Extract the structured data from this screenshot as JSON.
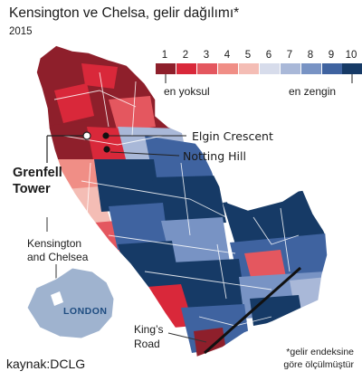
{
  "title": "Kensington ve Chelsa, gelir dağılımı*",
  "year": "2015",
  "legend": {
    "items": [
      {
        "label": "1",
        "color": "#8e1f2b"
      },
      {
        "label": "2",
        "color": "#d9283a"
      },
      {
        "label": "3",
        "color": "#e4575f"
      },
      {
        "label": "4",
        "color": "#f08e86"
      },
      {
        "label": "5",
        "color": "#f4bdb5"
      },
      {
        "label": "6",
        "color": "#d7dceb"
      },
      {
        "label": "7",
        "color": "#a9b8d8"
      },
      {
        "label": "8",
        "color": "#7893c4"
      },
      {
        "label": "9",
        "color": "#3f63a0"
      },
      {
        "label": "10",
        "color": "#163a66"
      }
    ],
    "low_label": "en yoksul",
    "high_label": "en zengin"
  },
  "callouts": {
    "elgin": "Elgin Crescent",
    "notting": "Notting Hill",
    "grenfell_line1": "Grenfell",
    "grenfell_line2": "Tower",
    "kc_line1": "Kensington",
    "kc_line2": "and Chelsea",
    "london": "LONDON",
    "kings_line1": "King’s",
    "kings_line2": "Road"
  },
  "source": "kaynak:DCLG",
  "footnote_line1": "*gelir endeksine",
  "footnote_line2": "göre ölçülmüştür"
}
